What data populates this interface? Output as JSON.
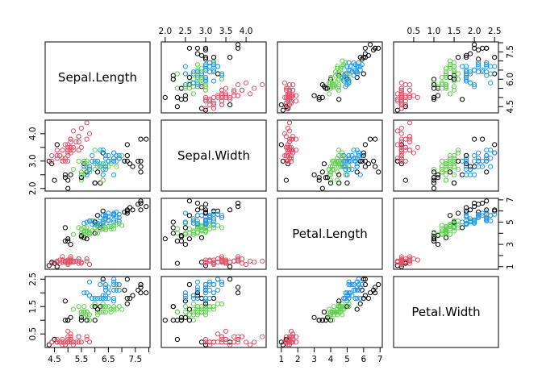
{
  "chart_data": {
    "type": "scatter-matrix",
    "title": "",
    "layout": {
      "matrix": "4x4",
      "diagonal": "variable-names",
      "marker": "open-circle",
      "grid": false,
      "background": "#ffffff",
      "border_color": "#3c3c3c",
      "axis_alternation": "R-pairs-default"
    },
    "palette": [
      "#000000",
      "#DF536B",
      "#61D04F",
      "#2297E6"
    ],
    "group_meaning": [
      "black",
      "red",
      "green",
      "blue"
    ],
    "variables": [
      {
        "name": "Sepal.Length",
        "lim": [
          4.156,
          8.044
        ],
        "ticks": [
          4.5,
          5.0,
          5.5,
          6.0,
          6.5,
          7.0,
          7.5,
          8.0
        ],
        "labels_h": {
          "4.5": "4.5",
          "5.5": "5.5",
          "6.5": "6.5",
          "7.5": "7.5"
        },
        "labels_v": {
          "4.5": "4.5",
          "6": "6.0",
          "7.5": "7.5"
        }
      },
      {
        "name": "Sepal.Width",
        "lim": [
          1.904,
          4.496
        ],
        "ticks": [
          2.0,
          2.5,
          3.0,
          3.5,
          4.0
        ],
        "labels_h": {
          "2": "2.0",
          "2.5": "2.5",
          "3": "3.0",
          "3.5": "3.5",
          "4": "4.0"
        },
        "labels_v": {
          "2": "2.0",
          "3": "3.0",
          "4": "4.0"
        }
      },
      {
        "name": "Petal.Length",
        "lim": [
          0.764,
          7.136
        ],
        "ticks": [
          1,
          2,
          3,
          4,
          5,
          6,
          7
        ],
        "labels_h": {
          "1": "1",
          "2": "2",
          "3": "3",
          "4": "4",
          "5": "5",
          "6": "6",
          "7": "7"
        },
        "labels_v": {
          "1": "1",
          "3": "3",
          "5": "5",
          "7": "7"
        }
      },
      {
        "name": "Petal.Width",
        "lim": [
          0.004,
          2.596
        ],
        "ticks": [
          0.5,
          1.0,
          1.5,
          2.0,
          2.5
        ],
        "labels_h": {
          "0.5": "0.5",
          "1": "1.0",
          "1.5": "1.5",
          "2": "2.0",
          "2.5": "2.5"
        },
        "labels_v": {
          "0.5": "0.5",
          "1.5": "1.5",
          "2.5": "2.5"
        }
      }
    ],
    "points_format": [
      "Sepal.Length",
      "Sepal.Width",
      "Petal.Length",
      "Petal.Width",
      "group"
    ],
    "points": [
      [
        5.1,
        3.5,
        1.4,
        0.2,
        1
      ],
      [
        4.9,
        3.0,
        1.4,
        0.2,
        1
      ],
      [
        4.7,
        3.2,
        1.3,
        0.2,
        1
      ],
      [
        4.6,
        3.1,
        1.5,
        0.2,
        1
      ],
      [
        5.0,
        3.6,
        1.4,
        0.2,
        1
      ],
      [
        5.4,
        3.9,
        1.7,
        0.4,
        1
      ],
      [
        4.6,
        3.4,
        1.4,
        0.3,
        1
      ],
      [
        5.0,
        3.4,
        1.5,
        0.2,
        1
      ],
      [
        4.4,
        2.9,
        1.4,
        0.2,
        0
      ],
      [
        4.9,
        3.1,
        1.5,
        0.1,
        1
      ],
      [
        5.4,
        3.7,
        1.5,
        0.2,
        1
      ],
      [
        4.8,
        3.4,
        1.6,
        0.2,
        1
      ],
      [
        4.8,
        3.0,
        1.4,
        0.1,
        1
      ],
      [
        4.3,
        3.0,
        1.1,
        0.1,
        0
      ],
      [
        5.8,
        4.0,
        1.2,
        0.2,
        1
      ],
      [
        5.7,
        4.4,
        1.5,
        0.4,
        1
      ],
      [
        5.4,
        3.9,
        1.3,
        0.4,
        1
      ],
      [
        5.1,
        3.5,
        1.4,
        0.3,
        1
      ],
      [
        5.7,
        3.8,
        1.7,
        0.3,
        1
      ],
      [
        5.1,
        3.8,
        1.5,
        0.3,
        1
      ],
      [
        5.4,
        3.4,
        1.7,
        0.2,
        1
      ],
      [
        5.1,
        3.7,
        1.5,
        0.4,
        1
      ],
      [
        4.6,
        3.6,
        1.0,
        0.2,
        0
      ],
      [
        5.1,
        3.3,
        1.7,
        0.5,
        1
      ],
      [
        4.8,
        3.4,
        1.9,
        0.2,
        1
      ],
      [
        5.0,
        3.0,
        1.6,
        0.2,
        1
      ],
      [
        5.0,
        3.4,
        1.6,
        0.4,
        1
      ],
      [
        5.2,
        3.5,
        1.5,
        0.2,
        1
      ],
      [
        5.2,
        3.4,
        1.4,
        0.2,
        1
      ],
      [
        4.7,
        3.2,
        1.6,
        0.2,
        1
      ],
      [
        4.8,
        3.1,
        1.6,
        0.2,
        1
      ],
      [
        5.4,
        3.4,
        1.5,
        0.4,
        1
      ],
      [
        5.2,
        4.1,
        1.5,
        0.1,
        1
      ],
      [
        5.5,
        4.2,
        1.4,
        0.2,
        1
      ],
      [
        4.9,
        3.1,
        1.5,
        0.2,
        1
      ],
      [
        5.0,
        3.2,
        1.2,
        0.2,
        1
      ],
      [
        5.5,
        3.5,
        1.3,
        0.2,
        1
      ],
      [
        4.9,
        3.6,
        1.4,
        0.1,
        1
      ],
      [
        4.4,
        3.0,
        1.3,
        0.2,
        1
      ],
      [
        5.1,
        3.4,
        1.5,
        0.2,
        1
      ],
      [
        5.0,
        3.5,
        1.3,
        0.3,
        1
      ],
      [
        4.5,
        2.3,
        1.3,
        0.3,
        0
      ],
      [
        4.4,
        3.2,
        1.3,
        0.2,
        1
      ],
      [
        5.0,
        3.5,
        1.6,
        0.6,
        1
      ],
      [
        5.1,
        3.8,
        1.9,
        0.4,
        1
      ],
      [
        4.8,
        3.0,
        1.4,
        0.3,
        1
      ],
      [
        5.1,
        3.8,
        1.6,
        0.2,
        1
      ],
      [
        4.6,
        3.2,
        1.4,
        0.2,
        1
      ],
      [
        5.3,
        3.7,
        1.5,
        0.2,
        1
      ],
      [
        5.0,
        3.3,
        1.4,
        0.2,
        1
      ],
      [
        7.0,
        3.2,
        4.7,
        1.4,
        2
      ],
      [
        6.4,
        3.2,
        4.5,
        1.5,
        2
      ],
      [
        6.9,
        3.1,
        4.9,
        1.5,
        2
      ],
      [
        5.5,
        2.3,
        4.0,
        1.3,
        2
      ],
      [
        6.5,
        2.8,
        4.6,
        1.5,
        2
      ],
      [
        5.7,
        2.8,
        4.5,
        1.3,
        2
      ],
      [
        6.3,
        3.3,
        4.7,
        1.6,
        2
      ],
      [
        4.9,
        2.4,
        3.3,
        1.0,
        0
      ],
      [
        6.6,
        2.9,
        4.6,
        1.3,
        2
      ],
      [
        5.2,
        2.7,
        3.9,
        1.4,
        2
      ],
      [
        5.0,
        2.0,
        3.5,
        1.0,
        0
      ],
      [
        5.9,
        3.0,
        4.2,
        1.5,
        2
      ],
      [
        6.0,
        2.2,
        4.0,
        1.0,
        0
      ],
      [
        6.1,
        2.9,
        4.7,
        1.4,
        2
      ],
      [
        5.6,
        2.9,
        3.6,
        1.3,
        0
      ],
      [
        6.7,
        3.1,
        4.4,
        1.4,
        2
      ],
      [
        5.6,
        3.0,
        4.5,
        1.5,
        2
      ],
      [
        5.8,
        2.7,
        4.1,
        1.0,
        2
      ],
      [
        6.2,
        2.2,
        4.5,
        1.5,
        0
      ],
      [
        5.6,
        2.5,
        3.9,
        1.1,
        2
      ],
      [
        5.9,
        3.2,
        4.8,
        1.8,
        3
      ],
      [
        6.1,
        2.8,
        4.0,
        1.3,
        2
      ],
      [
        6.3,
        2.5,
        4.9,
        1.5,
        2
      ],
      [
        6.1,
        2.8,
        4.7,
        1.2,
        2
      ],
      [
        6.4,
        2.9,
        4.3,
        1.3,
        2
      ],
      [
        6.6,
        3.0,
        4.4,
        1.4,
        2
      ],
      [
        6.8,
        2.8,
        4.8,
        1.4,
        2
      ],
      [
        6.7,
        3.0,
        5.0,
        1.7,
        3
      ],
      [
        6.0,
        2.9,
        4.5,
        1.5,
        2
      ],
      [
        5.7,
        2.6,
        3.5,
        1.0,
        0
      ],
      [
        5.5,
        2.4,
        3.8,
        1.1,
        0
      ],
      [
        5.5,
        2.4,
        3.7,
        1.0,
        0
      ],
      [
        5.8,
        2.7,
        3.9,
        1.2,
        2
      ],
      [
        6.0,
        2.7,
        5.1,
        1.6,
        2
      ],
      [
        5.4,
        3.0,
        4.5,
        1.5,
        2
      ],
      [
        6.0,
        3.4,
        4.5,
        1.6,
        2
      ],
      [
        6.7,
        3.1,
        4.7,
        1.5,
        2
      ],
      [
        6.3,
        2.3,
        4.4,
        1.3,
        2
      ],
      [
        5.6,
        3.0,
        4.1,
        1.3,
        2
      ],
      [
        5.5,
        2.5,
        4.0,
        1.3,
        2
      ],
      [
        5.5,
        2.6,
        4.4,
        1.2,
        2
      ],
      [
        6.1,
        3.0,
        4.6,
        1.4,
        2
      ],
      [
        5.8,
        2.6,
        4.0,
        1.2,
        2
      ],
      [
        5.0,
        2.3,
        3.3,
        1.0,
        0
      ],
      [
        5.6,
        2.7,
        4.2,
        1.3,
        2
      ],
      [
        5.7,
        3.0,
        4.2,
        1.2,
        2
      ],
      [
        5.7,
        2.9,
        4.2,
        1.3,
        2
      ],
      [
        6.2,
        2.9,
        4.3,
        1.3,
        2
      ],
      [
        5.1,
        2.5,
        3.0,
        1.1,
        0
      ],
      [
        5.7,
        2.8,
        4.1,
        1.3,
        2
      ],
      [
        6.3,
        3.3,
        6.0,
        2.5,
        0
      ],
      [
        5.8,
        2.7,
        5.1,
        1.9,
        3
      ],
      [
        7.1,
        3.0,
        5.9,
        2.1,
        0
      ],
      [
        6.3,
        2.9,
        5.6,
        1.8,
        3
      ],
      [
        6.5,
        3.0,
        5.8,
        2.2,
        3
      ],
      [
        7.6,
        3.0,
        6.6,
        2.1,
        0
      ],
      [
        4.9,
        2.5,
        4.5,
        1.7,
        0
      ],
      [
        7.3,
        2.9,
        6.3,
        1.8,
        0
      ],
      [
        6.7,
        2.5,
        5.8,
        1.8,
        3
      ],
      [
        7.2,
        3.6,
        6.1,
        2.5,
        0
      ],
      [
        6.5,
        3.2,
        5.1,
        2.0,
        3
      ],
      [
        6.4,
        2.7,
        5.3,
        1.9,
        3
      ],
      [
        6.8,
        3.0,
        5.5,
        2.1,
        3
      ],
      [
        5.7,
        2.5,
        5.0,
        2.0,
        3
      ],
      [
        5.8,
        2.8,
        5.1,
        2.4,
        3
      ],
      [
        6.4,
        3.2,
        5.3,
        2.3,
        3
      ],
      [
        6.5,
        3.0,
        5.5,
        1.8,
        3
      ],
      [
        7.7,
        3.8,
        6.7,
        2.2,
        0
      ],
      [
        7.7,
        2.6,
        6.9,
        2.3,
        0
      ],
      [
        6.0,
        2.2,
        5.0,
        1.5,
        0
      ],
      [
        6.9,
        3.2,
        5.7,
        2.3,
        3
      ],
      [
        5.6,
        2.8,
        4.9,
        2.0,
        3
      ],
      [
        7.7,
        2.8,
        6.7,
        2.0,
        0
      ],
      [
        6.3,
        2.7,
        4.9,
        1.8,
        3
      ],
      [
        6.7,
        3.3,
        5.7,
        2.1,
        3
      ],
      [
        7.2,
        3.2,
        6.0,
        1.8,
        0
      ],
      [
        6.2,
        2.8,
        4.8,
        1.8,
        3
      ],
      [
        6.1,
        3.0,
        4.9,
        1.8,
        3
      ],
      [
        6.4,
        2.8,
        5.6,
        2.1,
        3
      ],
      [
        7.2,
        3.0,
        5.8,
        1.6,
        0
      ],
      [
        7.4,
        2.8,
        6.1,
        1.9,
        0
      ],
      [
        7.9,
        3.8,
        6.4,
        2.0,
        0
      ],
      [
        6.4,
        2.8,
        5.6,
        2.2,
        3
      ],
      [
        6.3,
        2.8,
        5.1,
        1.5,
        2
      ],
      [
        6.1,
        2.6,
        5.6,
        1.4,
        0
      ],
      [
        7.7,
        3.0,
        6.1,
        2.3,
        0
      ],
      [
        6.3,
        3.4,
        5.6,
        2.4,
        3
      ],
      [
        6.4,
        3.1,
        5.5,
        1.8,
        3
      ],
      [
        6.0,
        3.0,
        4.8,
        1.8,
        3
      ],
      [
        6.9,
        3.1,
        5.4,
        2.1,
        3
      ],
      [
        6.7,
        3.1,
        5.6,
        2.4,
        3
      ],
      [
        6.9,
        3.1,
        5.1,
        2.3,
        3
      ],
      [
        5.8,
        2.7,
        5.1,
        1.9,
        3
      ],
      [
        6.8,
        3.2,
        5.9,
        2.3,
        3
      ],
      [
        6.7,
        3.3,
        5.7,
        2.5,
        3
      ],
      [
        6.7,
        3.0,
        5.2,
        2.3,
        3
      ],
      [
        6.3,
        2.5,
        5.0,
        1.9,
        3
      ],
      [
        6.5,
        3.0,
        5.2,
        2.0,
        3
      ],
      [
        6.2,
        3.4,
        5.4,
        2.3,
        3
      ],
      [
        5.9,
        3.0,
        5.1,
        1.8,
        3
      ]
    ]
  }
}
